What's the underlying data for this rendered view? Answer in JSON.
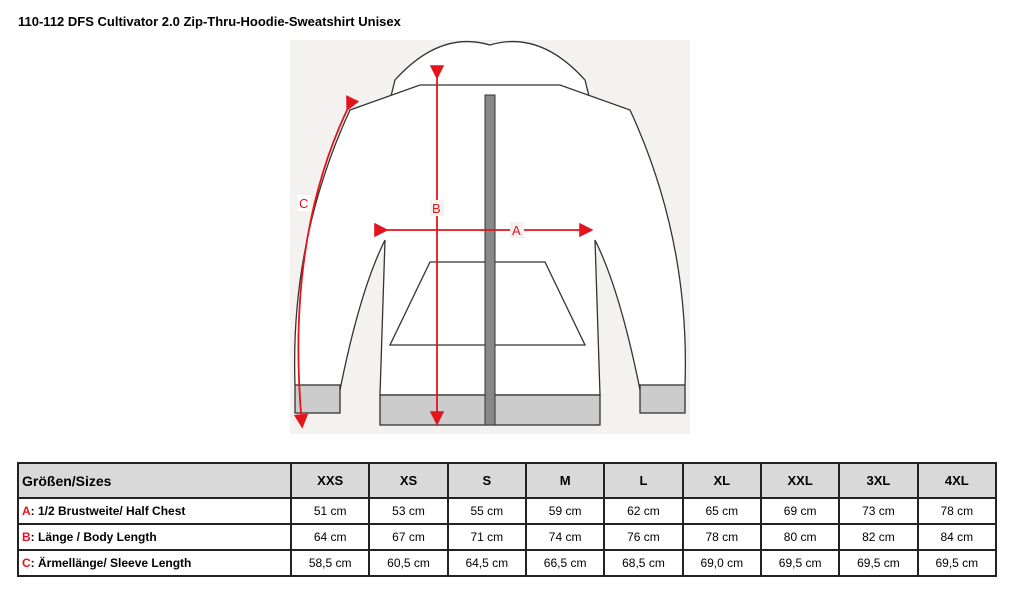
{
  "title": "110-112 DFS Cultivator 2.0 Zip-Thru-Hoodie-Sweatshirt Unisex",
  "diagram": {
    "labels": {
      "a": "A",
      "b": "B",
      "c": "C"
    },
    "arrow_color": "#e3141b"
  },
  "table": {
    "header_label": "Größen/Sizes",
    "sizes": [
      "XXS",
      "XS",
      "S",
      "M",
      "L",
      "XL",
      "XXL",
      "3XL",
      "4XL"
    ],
    "rows": [
      {
        "letter": "A",
        "label": ": 1/2 Brustweite/ Half Chest",
        "values": [
          "51 cm",
          "53 cm",
          "55 cm",
          "59 cm",
          "62 cm",
          "65 cm",
          "69 cm",
          "73 cm",
          "78 cm"
        ]
      },
      {
        "letter": "B",
        "label": ": Länge / Body Length",
        "values": [
          "64 cm",
          "67 cm",
          "71 cm",
          "74 cm",
          "76 cm",
          "78 cm",
          "80 cm",
          "82 cm",
          "84 cm"
        ]
      },
      {
        "letter": "C",
        "label": ": Ärmellänge/ Sleeve Length",
        "values": [
          "58,5 cm",
          "60,5 cm",
          "64,5 cm",
          "66,5 cm",
          "68,5 cm",
          "69,0 cm",
          "69,5 cm",
          "69,5 cm",
          "69,5 cm"
        ]
      }
    ]
  }
}
